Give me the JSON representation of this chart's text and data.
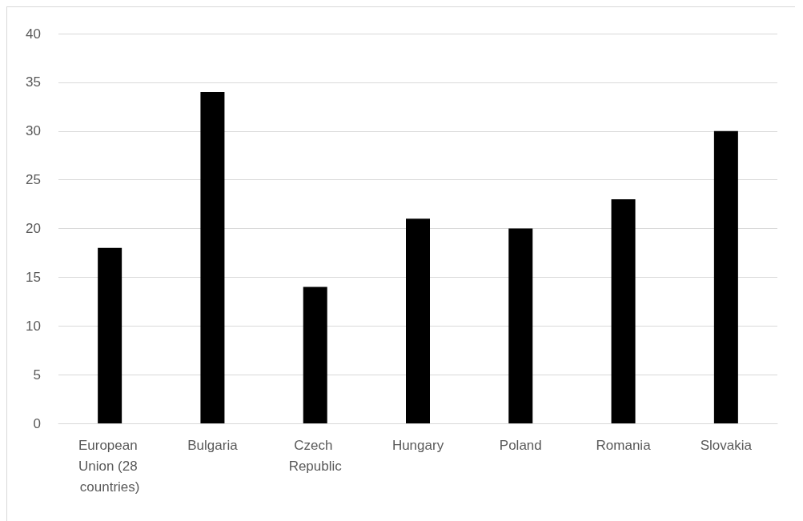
{
  "chart_data": {
    "type": "bar",
    "categories": [
      "European Union (28 countries)",
      "Bulgaria",
      "Czech Republic",
      "Hungary",
      "Poland",
      "Romania",
      "Slovakia"
    ],
    "values": [
      18,
      34,
      14,
      21,
      20,
      23,
      30
    ],
    "color": "#000000",
    "ylim": [
      0,
      40
    ],
    "yticks": [
      0,
      5,
      10,
      15,
      20,
      25,
      30,
      35,
      40
    ],
    "grid": "y"
  }
}
